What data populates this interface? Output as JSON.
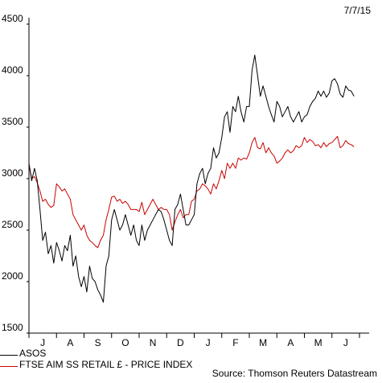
{
  "date_label": "7/7/15",
  "source": "Source: Thomson Reuters Datastream",
  "colors": {
    "asos": "#000000",
    "ftse": "#cc0000"
  },
  "chart_data": {
    "type": "line",
    "title": "",
    "xlabel": "",
    "ylabel": "",
    "ylim": [
      1500,
      4500
    ],
    "yticks": [
      1500,
      2000,
      2500,
      3000,
      3500,
      4000,
      4500
    ],
    "xticks": [
      "J",
      "A",
      "S",
      "O",
      "N",
      "D",
      "J",
      "F",
      "M",
      "A",
      "M",
      "J"
    ],
    "grid": false,
    "legend_position": "bottom-left",
    "x": [
      0.0,
      0.1,
      0.2,
      0.3,
      0.4,
      0.5,
      0.6,
      0.7,
      0.8,
      0.9,
      1.0,
      1.1,
      1.2,
      1.3,
      1.4,
      1.5,
      1.6,
      1.7,
      1.8,
      1.9,
      2.0,
      2.1,
      2.2,
      2.3,
      2.4,
      2.5,
      2.6,
      2.7,
      2.8,
      2.9,
      3.0,
      3.1,
      3.2,
      3.3,
      3.4,
      3.5,
      3.6,
      3.7,
      3.8,
      3.9,
      4.0,
      4.1,
      4.2,
      4.3,
      4.4,
      4.5,
      4.6,
      4.7,
      4.8,
      4.9,
      5.0,
      5.1,
      5.2,
      5.3,
      5.4,
      5.5,
      5.6,
      5.7,
      5.8,
      5.9,
      6.0,
      6.1,
      6.2,
      6.3,
      6.4,
      6.5,
      6.6,
      6.7,
      6.8,
      6.9,
      7.0,
      7.1,
      7.2,
      7.3,
      7.4,
      7.5,
      7.6,
      7.7,
      7.8,
      7.9,
      8.0,
      8.1,
      8.2,
      8.3,
      8.4,
      8.5,
      8.6,
      8.7,
      8.8,
      8.9,
      9.0,
      9.1,
      9.2,
      9.3,
      9.4,
      9.5,
      9.6,
      9.7,
      9.8,
      9.9,
      10.0,
      10.1,
      10.2,
      10.3,
      10.4,
      10.5,
      10.6,
      10.7,
      10.8,
      10.9,
      11.0,
      11.1,
      11.2,
      11.3,
      11.4,
      11.5,
      11.6,
      11.7,
      11.8
    ],
    "series": [
      {
        "name": "ASOS",
        "values": [
          3150,
          2980,
          3100,
          2980,
          2700,
          2400,
          2480,
          2270,
          2350,
          2180,
          2380,
          2300,
          2200,
          2350,
          2300,
          2450,
          2150,
          2250,
          2050,
          1950,
          2050,
          1900,
          2150,
          2030,
          2000,
          1920,
          1870,
          1800,
          2150,
          2250,
          2600,
          2700,
          2600,
          2500,
          2550,
          2650,
          2550,
          2450,
          2550,
          2400,
          2350,
          2550,
          2400,
          2500,
          2550,
          2600,
          2650,
          2700,
          2680,
          2600,
          2500,
          2400,
          2350,
          2700,
          2750,
          2850,
          2700,
          2550,
          2550,
          2600,
          2650,
          2950,
          3050,
          3100,
          2950,
          3050,
          3100,
          3300,
          3200,
          3250,
          3400,
          3600,
          3650,
          3450,
          3700,
          3650,
          3800,
          3650,
          3550,
          3700,
          3700,
          4050,
          4200,
          4000,
          3800,
          3900,
          3800,
          3700,
          3620,
          3550,
          3750,
          3700,
          3600,
          3650,
          3700,
          3600,
          3550,
          3600,
          3650,
          3550,
          3600,
          3620,
          3700,
          3750,
          3780,
          3850,
          3800,
          3850,
          3790,
          3830,
          3950,
          3970,
          3920,
          3820,
          3790,
          3900,
          3860,
          3850,
          3800
        ]
      },
      {
        "name": "FTSE AIM SS RETAIL £ - PRICE INDEX",
        "values": [
          3140,
          3000,
          3020,
          2960,
          2880,
          2780,
          2800,
          2750,
          2720,
          2740,
          2950,
          2920,
          2880,
          2900,
          2850,
          2800,
          2650,
          2600,
          2550,
          2500,
          2550,
          2450,
          2400,
          2380,
          2350,
          2330,
          2400,
          2450,
          2600,
          2700,
          2820,
          2830,
          2780,
          2800,
          2760,
          2780,
          2750,
          2700,
          2700,
          2700,
          2680,
          2770,
          2650,
          2700,
          2750,
          2800,
          2750,
          2700,
          2720,
          2700,
          2700,
          2650,
          2500,
          2580,
          2650,
          2700,
          2620,
          2650,
          2650,
          2780,
          2800,
          2880,
          2900,
          2950,
          2930,
          2900,
          2850,
          2950,
          2900,
          2980,
          3080,
          3000,
          3150,
          3100,
          3150,
          3100,
          3200,
          3180,
          3200,
          3190,
          3250,
          3350,
          3400,
          3300,
          3290,
          3350,
          3250,
          3300,
          3250,
          3220,
          3150,
          3170,
          3200,
          3250,
          3280,
          3250,
          3270,
          3320,
          3300,
          3320,
          3400,
          3350,
          3380,
          3360,
          3320,
          3330,
          3300,
          3350,
          3310,
          3340,
          3350,
          3380,
          3410,
          3300,
          3320,
          3370,
          3340,
          3330,
          3310
        ]
      }
    ]
  }
}
